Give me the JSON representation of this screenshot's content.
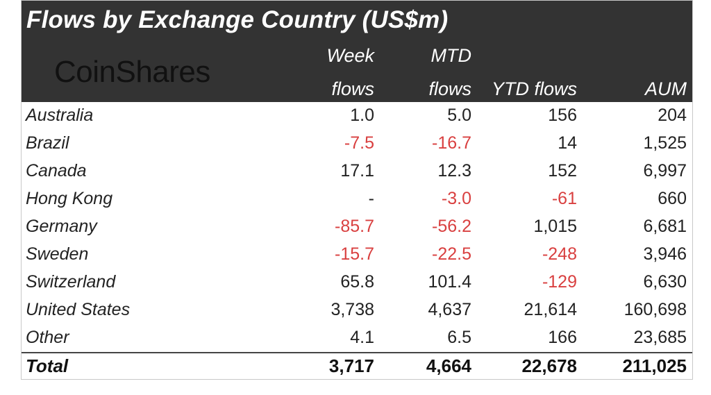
{
  "title": "Flows by Exchange Country (US$m)",
  "logo": "CoinShares",
  "headers": {
    "week": [
      "Week",
      "flows"
    ],
    "mtd": [
      "MTD",
      "flows"
    ],
    "ytd": "YTD flows",
    "aum": "AUM"
  },
  "rows": [
    {
      "country": "Australia",
      "week": "1.0",
      "mtd": "5.0",
      "ytd": "156",
      "aum": "204"
    },
    {
      "country": "Brazil",
      "week": "-7.5",
      "mtd": "-16.7",
      "ytd": "14",
      "aum": "1,525"
    },
    {
      "country": "Canada",
      "week": "17.1",
      "mtd": "12.3",
      "ytd": "152",
      "aum": "6,997"
    },
    {
      "country": "Hong Kong",
      "week": "-",
      "mtd": "-3.0",
      "ytd": "-61",
      "aum": "660"
    },
    {
      "country": "Germany",
      "week": "-85.7",
      "mtd": "-56.2",
      "ytd": "1,015",
      "aum": "6,681"
    },
    {
      "country": "Sweden",
      "week": "-15.7",
      "mtd": "-22.5",
      "ytd": "-248",
      "aum": "3,946"
    },
    {
      "country": "Switzerland",
      "week": "65.8",
      "mtd": "101.4",
      "ytd": "-129",
      "aum": "6,630"
    },
    {
      "country": "United States",
      "week": "3,738",
      "mtd": "4,637",
      "ytd": "21,614",
      "aum": "160,698"
    },
    {
      "country": "Other",
      "week": "4.1",
      "mtd": "6.5",
      "ytd": "166",
      "aum": "23,685"
    }
  ],
  "total": {
    "country": "Total",
    "week": "3,717",
    "mtd": "4,664",
    "ytd": "22,678",
    "aum": "211,025"
  },
  "colors": {
    "header_bg": "#333333",
    "negative": "#d94040",
    "text": "#222222"
  }
}
